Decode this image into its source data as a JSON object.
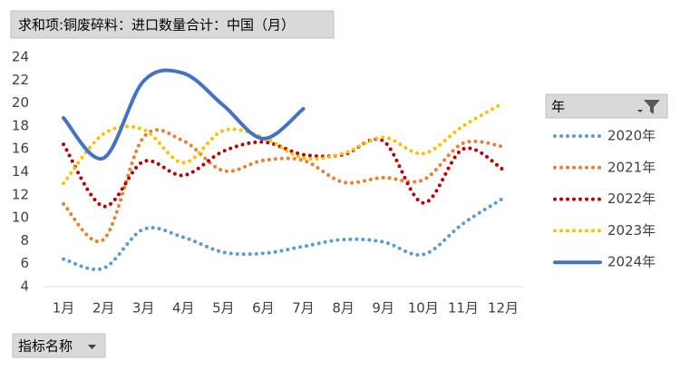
{
  "chart_data": {
    "type": "line",
    "title": "求和项:铜废碎料：进口数量合计：中国（月）",
    "legend_title": "年",
    "field_button": "指标名称",
    "categories": [
      "1月",
      "2月",
      "3月",
      "4月",
      "5月",
      "6月",
      "7月",
      "8月",
      "9月",
      "10月",
      "11月",
      "12月"
    ],
    "ylim": [
      4,
      24
    ],
    "yticks": [
      4,
      6,
      8,
      10,
      12,
      14,
      16,
      18,
      20,
      22,
      24
    ],
    "grid": false,
    "smooth": true,
    "legend": "right",
    "series": [
      {
        "name": "2020年",
        "color": "#5B9BD5",
        "style": "dotted",
        "values": [
          6.4,
          5.6,
          9.0,
          8.3,
          7.0,
          6.9,
          7.5,
          8.1,
          7.9,
          6.8,
          9.5,
          11.7
        ]
      },
      {
        "name": "2021年",
        "color": "#ED7D31",
        "style": "dotted",
        "values": [
          11.2,
          8.1,
          17.0,
          16.7,
          14.1,
          15.0,
          15.0,
          13.1,
          13.5,
          13.3,
          16.5,
          16.2
        ]
      },
      {
        "name": "2022年",
        "color": "#C00000",
        "style": "dotted",
        "values": [
          16.4,
          11.0,
          14.9,
          13.7,
          15.8,
          16.6,
          15.5,
          15.5,
          16.7,
          11.3,
          16.0,
          14.2
        ]
      },
      {
        "name": "2023年",
        "color": "#FFC000",
        "style": "dotted",
        "values": [
          13.0,
          17.3,
          17.7,
          14.8,
          17.6,
          17.0,
          15.2,
          15.6,
          17.0,
          15.6,
          18.0,
          20.0
        ]
      },
      {
        "name": "2024年",
        "color": "#4472C4",
        "style": "solid",
        "values": [
          18.7,
          15.2,
          21.9,
          22.6,
          19.8,
          16.9,
          19.5,
          null,
          null,
          null,
          null,
          null
        ]
      }
    ]
  }
}
